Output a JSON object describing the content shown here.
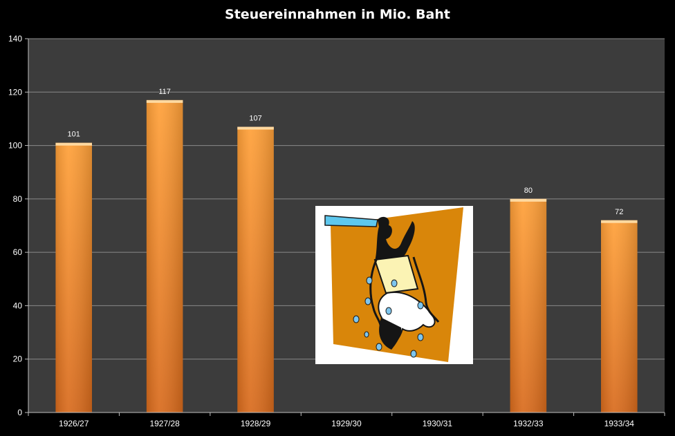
{
  "chart_data": {
    "type": "bar",
    "title": "Steuereinnahmen in Mio. Baht",
    "xlabel": "",
    "ylabel": "",
    "categories": [
      "1926/27",
      "1927/28",
      "1928/29",
      "1929/30",
      "1930/31",
      "1932/33",
      "1933/34"
    ],
    "values": [
      101,
      117,
      107,
      null,
      null,
      80,
      72
    ],
    "data_labels": [
      "101",
      "117",
      "107",
      "",
      "",
      "80",
      "72"
    ],
    "ylim": [
      0,
      140
    ],
    "yticks": [
      0,
      20,
      40,
      60,
      80,
      100,
      120,
      140
    ],
    "grid": true,
    "legend": "none"
  },
  "colors": {
    "background": "#000000",
    "plot_area": "#3c3c3c",
    "gridline": "#8a8a8a",
    "bar_top": "#ffa038",
    "bar_bottom": "#d86a1c",
    "text": "#ffffff"
  },
  "icons": {
    "clipart": "person-drained-upside-down-clipart"
  }
}
